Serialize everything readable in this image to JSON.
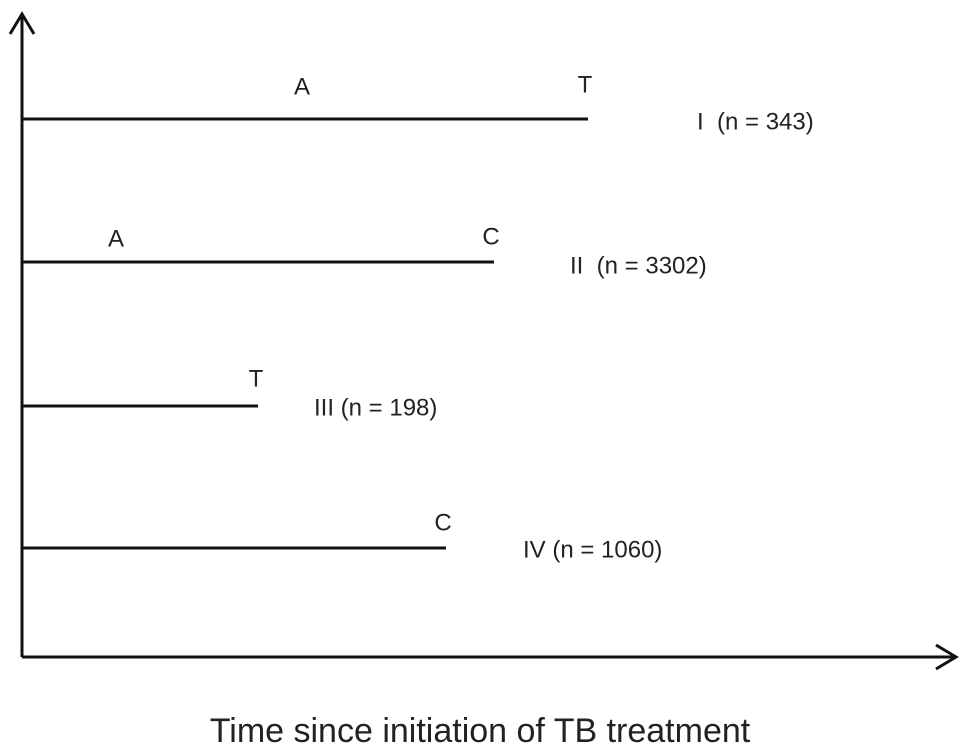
{
  "rows": [
    {
      "label": "I  (n = 343)",
      "events": [
        "A",
        "T"
      ]
    },
    {
      "label": "II  (n = 3302)",
      "events": [
        "A",
        "C"
      ]
    },
    {
      "label": "III (n = 198)",
      "events": [
        "T"
      ]
    },
    {
      "label": "IV (n = 1060)",
      "events": [
        "C"
      ]
    }
  ],
  "x_axis_label": "Time since initiation of TB treatment"
}
